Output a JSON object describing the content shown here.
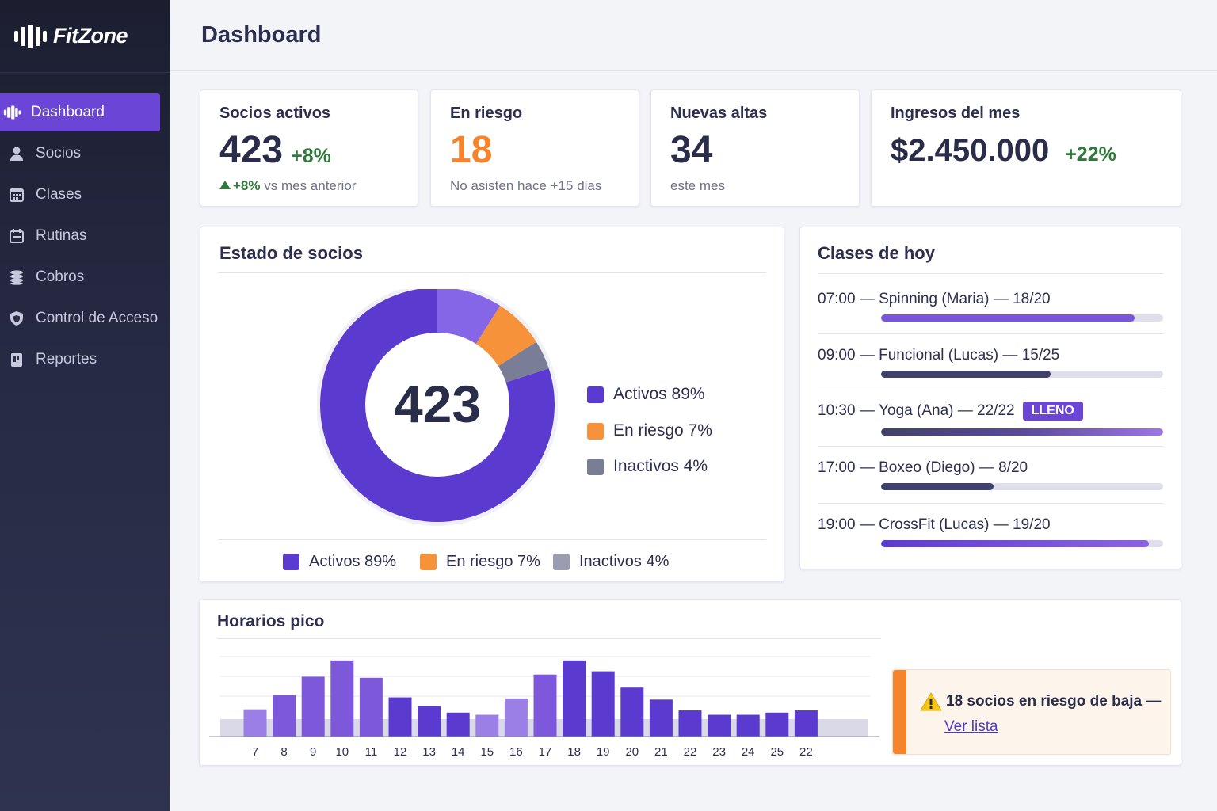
{
  "app": {
    "name": "FitZone"
  },
  "sidebar": {
    "items": [
      {
        "label": "Dashboard",
        "icon": "dumbbell-icon",
        "active": true
      },
      {
        "label": "Socios",
        "icon": "user-icon"
      },
      {
        "label": "Clases",
        "icon": "calendar-icon"
      },
      {
        "label": "Rutinas",
        "icon": "clipboard-icon"
      },
      {
        "label": "Cobros",
        "icon": "coins-icon"
      },
      {
        "label": "Control de Acceso",
        "icon": "shield-icon"
      },
      {
        "label": "Reportes",
        "icon": "report-icon"
      }
    ]
  },
  "header": {
    "title": "Dashboard"
  },
  "kpis": [
    {
      "label": "Socios activos",
      "value": "423",
      "delta": "+8%",
      "sub_delta": "+8%",
      "sub": "vs mes anterior"
    },
    {
      "label": "En riesgo",
      "value": "18",
      "sub": "No asisten hace +15 dias",
      "color": "#f5842c"
    },
    {
      "label": "Nuevas altas",
      "value": "34",
      "sub": "este mes"
    },
    {
      "label": "Ingresos del mes",
      "value": "$2.450.000",
      "delta": "+22%"
    }
  ],
  "estado": {
    "title": "Estado de socios",
    "center_value": "423",
    "legend_side": [
      "Activos 89%",
      "En riesgo 7%",
      "Inactivos 4%"
    ],
    "legend_bottom": [
      "Activos 89%",
      "En riesgo 7%",
      "Inactivos 4%"
    ]
  },
  "clases": {
    "title": "Clases de hoy",
    "items": [
      {
        "time": "07:00",
        "name": "Spinning (Maria)",
        "count": "18/20",
        "occupancy": 0.9,
        "full": false
      },
      {
        "time": "09:00",
        "name": "Funcional (Lucas)",
        "count": "15/25",
        "occupancy": 0.6,
        "full": false
      },
      {
        "time": "10:30",
        "name": "Yoga (Ana)",
        "count": "22/22",
        "occupancy": 1.0,
        "full": true,
        "badge": "LLENO"
      },
      {
        "time": "17:00",
        "name": "Boxeo (Diego)",
        "count": "8/20",
        "occupancy": 0.4,
        "full": false
      },
      {
        "time": "19:00",
        "name": "CrossFit (Lucas)",
        "count": "19/20",
        "occupancy": 0.95,
        "full": false
      }
    ]
  },
  "horarios": {
    "title": "Horarios pico"
  },
  "alert": {
    "text": "18 socios en riesgo de baja —",
    "link": "Ver lista"
  },
  "colors": {
    "accent": "#6a45d6",
    "risk": "#f5842c",
    "inactive": "#7a7d96",
    "positive": "#2f7a3a"
  },
  "chart_data": [
    {
      "type": "pie",
      "title": "Estado de socios",
      "center_label": "423",
      "labels": [
        "Activos",
        "En riesgo",
        "Inactivos"
      ],
      "values": [
        89,
        7,
        4
      ],
      "colors": [
        "#5b3bcf",
        "#f5923a",
        "#7a7d96"
      ]
    },
    {
      "type": "bar",
      "title": "Horarios pico",
      "categories": [
        "7",
        "8",
        "9",
        "10",
        "11",
        "12",
        "13",
        "14",
        "15",
        "16",
        "17",
        "18",
        "19",
        "20",
        "21",
        "22",
        "23",
        "24",
        "25",
        "22"
      ],
      "values": [
        25,
        38,
        55,
        70,
        54,
        36,
        28,
        22,
        20,
        35,
        57,
        70,
        60,
        45,
        34,
        24,
        20,
        20,
        22,
        24
      ],
      "ylim": [
        0,
        75
      ],
      "grid": true
    }
  ]
}
